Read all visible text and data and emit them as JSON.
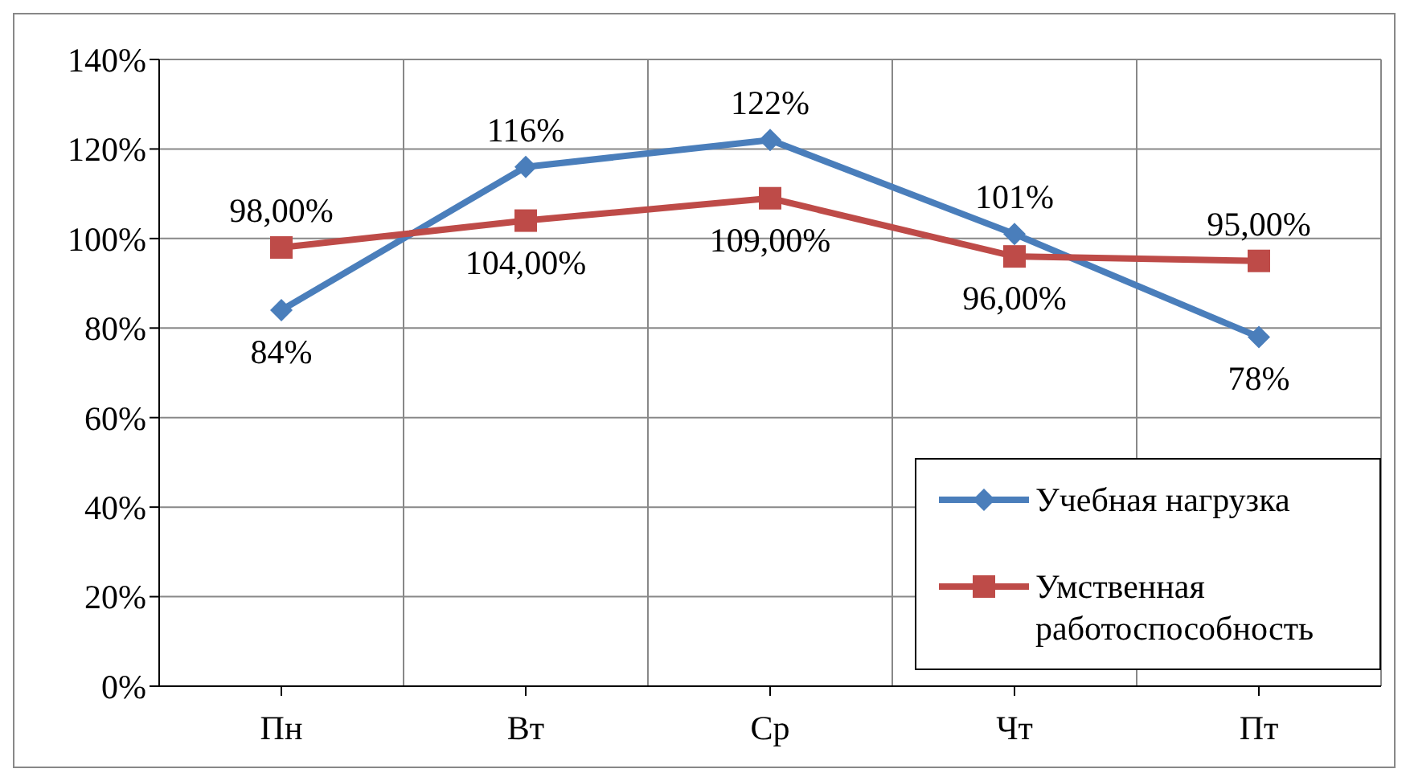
{
  "chart_data": {
    "type": "line",
    "categories": [
      "Пн",
      "Вт",
      "Ср",
      "Чт",
      "Пт"
    ],
    "series": [
      {
        "name": "Учебная нагрузка",
        "color": "#4a7ebb",
        "marker": "diamond",
        "values": [
          84,
          116,
          122,
          101,
          78
        ],
        "value_labels": [
          "84%",
          "116%",
          "122%",
          "101%",
          "78%"
        ]
      },
      {
        "name": "Умственная работоспособность",
        "color": "#be4b48",
        "marker": "square",
        "values": [
          98,
          104,
          109,
          96,
          95
        ],
        "value_labels": [
          "98,00%",
          "104,00%",
          "109,00%",
          "96,00%",
          "95,00%"
        ]
      }
    ],
    "ylim": [
      0,
      140
    ],
    "yticks": [
      {
        "value": 0,
        "label": "0%"
      },
      {
        "value": 20,
        "label": "20%"
      },
      {
        "value": 40,
        "label": "40%"
      },
      {
        "value": 60,
        "label": "60%"
      },
      {
        "value": 80,
        "label": "80%"
      },
      {
        "value": 100,
        "label": "100%"
      },
      {
        "value": 120,
        "label": "120%"
      },
      {
        "value": 140,
        "label": "140%"
      }
    ],
    "grid": true,
    "legend": "bottom right",
    "line_style": "solid"
  }
}
